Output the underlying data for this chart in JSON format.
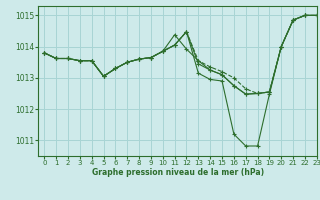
{
  "title": "Graphe pression niveau de la mer (hPa)",
  "background_color": "#ceeaea",
  "grid_color": "#a8d4d4",
  "line_color": "#2d6e2d",
  "xlim": [
    -0.5,
    23
  ],
  "ylim": [
    1010.5,
    1015.3
  ],
  "yticks": [
    1011,
    1012,
    1013,
    1014,
    1015
  ],
  "xticks": [
    0,
    1,
    2,
    3,
    4,
    5,
    6,
    7,
    8,
    9,
    10,
    11,
    12,
    13,
    14,
    15,
    16,
    17,
    18,
    19,
    20,
    21,
    22,
    23
  ],
  "series": [
    {
      "y": [
        1013.8,
        1013.62,
        1013.62,
        1013.55,
        1013.55,
        1013.05,
        1013.3,
        1013.5,
        1013.6,
        1013.65,
        1013.85,
        1014.05,
        1014.48,
        1013.15,
        1012.95,
        1012.9,
        1011.2,
        1010.82,
        1010.82,
        1012.48,
        1014.0,
        1014.85,
        1015.0,
        1015.0
      ],
      "linestyle": "-"
    },
    {
      "y": [
        1013.8,
        1013.62,
        1013.62,
        1013.55,
        1013.55,
        1013.05,
        1013.3,
        1013.5,
        1013.6,
        1013.65,
        1013.85,
        1014.05,
        1014.48,
        1013.45,
        1013.25,
        1013.1,
        1012.75,
        1012.48,
        1012.5,
        1012.55,
        1014.0,
        1014.85,
        1015.0,
        1015.0
      ],
      "linestyle": "-"
    },
    {
      "y": [
        1013.8,
        1013.62,
        1013.62,
        1013.55,
        1013.55,
        1013.05,
        1013.3,
        1013.5,
        1013.6,
        1013.65,
        1013.85,
        1014.38,
        1013.92,
        1013.55,
        1013.25,
        1013.1,
        1012.75,
        1012.48,
        1012.5,
        1012.55,
        1014.0,
        1014.85,
        1015.0,
        1015.0
      ],
      "linestyle": "-"
    },
    {
      "y": [
        1013.8,
        1013.62,
        1013.62,
        1013.55,
        1013.55,
        1013.05,
        1013.3,
        1013.5,
        1013.6,
        1013.65,
        1013.85,
        1014.05,
        1014.48,
        1013.55,
        1013.35,
        1013.2,
        1013.0,
        1012.65,
        1012.5,
        1012.55,
        1014.0,
        1014.85,
        1015.0,
        1015.0
      ],
      "linestyle": "--"
    }
  ]
}
